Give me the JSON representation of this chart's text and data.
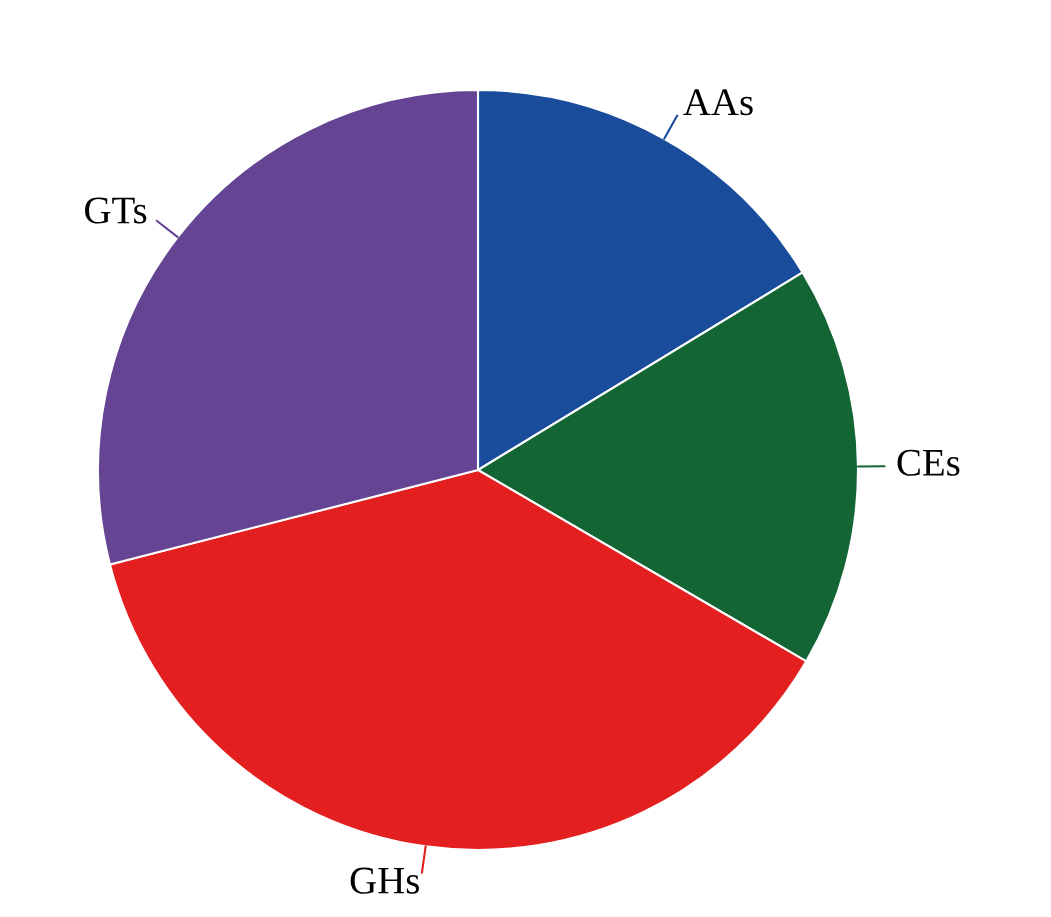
{
  "chart_data": {
    "type": "pie",
    "categories": [
      "AAs",
      "CEs",
      "GHs",
      "GTs"
    ],
    "values": [
      16.3,
      17.1,
      37.6,
      29.0
    ],
    "colors": [
      "#1a4c9c",
      "#136534",
      "#e41f1f",
      "#654494"
    ]
  }
}
